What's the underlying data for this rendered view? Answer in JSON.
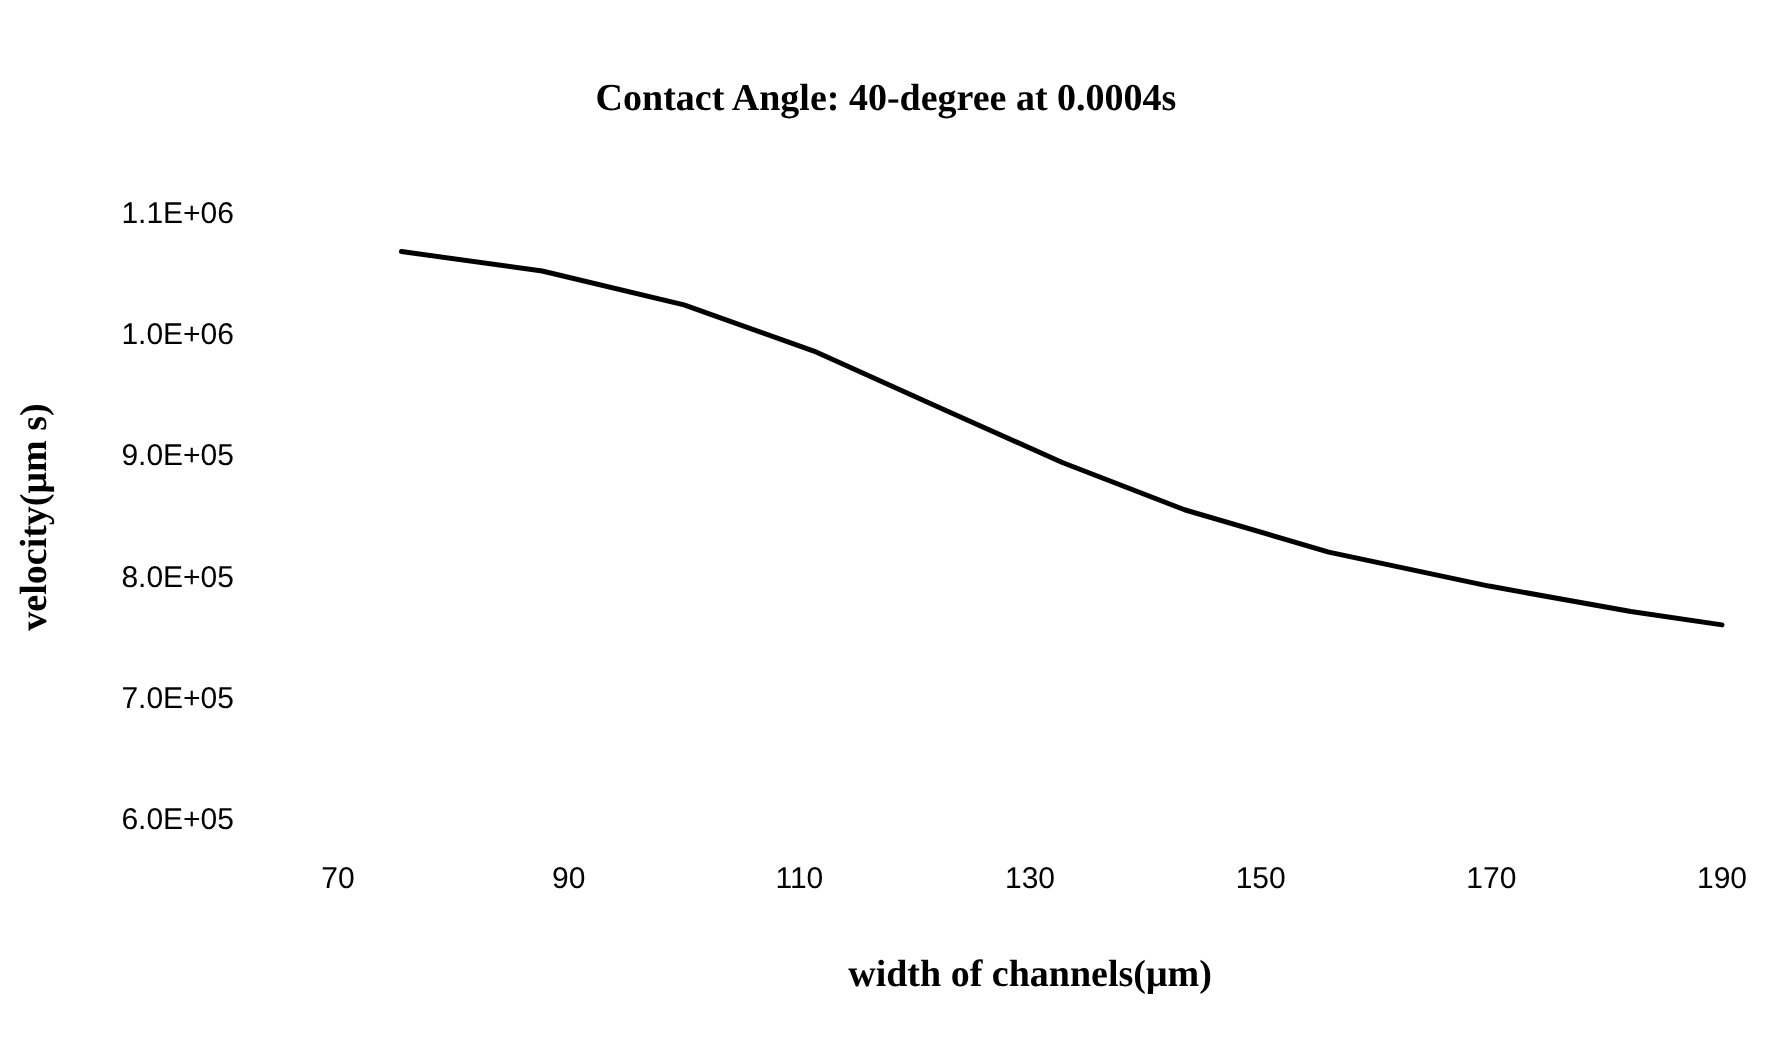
{
  "chart_data": {
    "type": "line",
    "title": "Contact Angle: 40-degree at 0.0004s",
    "xlabel": "width of channels(μm)",
    "ylabel": "velocity(μm s)",
    "x": [
      75.5,
      87.7,
      100,
      111.5,
      122.9,
      132.8,
      143.4,
      155.9,
      169.8,
      182.1,
      190
    ],
    "series": [
      {
        "color": "#000000",
        "values": [
          1069000,
          1053000,
          1025000,
          986000,
          937000,
          895000,
          856000,
          821000,
          793000,
          772000,
          761000
        ]
      }
    ],
    "xlim": [
      70,
      190
    ],
    "xticks": [
      70,
      90,
      110,
      130,
      150,
      170,
      190
    ],
    "ylim": [
      600000,
      1100000
    ],
    "yticks": [
      {
        "value": 600000,
        "label": "6.0E+05"
      },
      {
        "value": 700000,
        "label": "7.0E+05"
      },
      {
        "value": 800000,
        "label": "8.0E+05"
      },
      {
        "value": 900000,
        "label": "9.0E+05"
      },
      {
        "value": 1000000,
        "label": "1.0E+06"
      },
      {
        "value": 1100000,
        "label": "1.1E+06"
      }
    ],
    "grid": false,
    "marker": "none",
    "line_style": "solid"
  }
}
